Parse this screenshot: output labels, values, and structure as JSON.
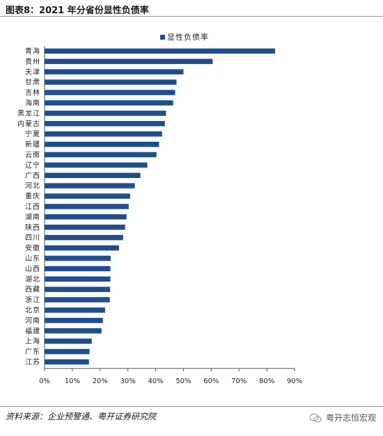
{
  "figure": {
    "title": "图表8：2021 年分省份显性负债率",
    "source": "资料来源：企业预警通、粤开证券研究院",
    "watermark": "粤开志恒宏观"
  },
  "colors": {
    "bar": "#1F4E8C",
    "axis": "#555555",
    "rule": "#9a9a9a"
  },
  "chart_data": {
    "type": "bar",
    "orientation": "horizontal",
    "categories": [
      "青海",
      "贵州",
      "天津",
      "甘肃",
      "吉林",
      "海南",
      "黑龙江",
      "内蒙古",
      "宁夏",
      "新疆",
      "云南",
      "辽宁",
      "广西",
      "河北",
      "重庆",
      "江西",
      "湖南",
      "陕西",
      "四川",
      "安徽",
      "山东",
      "山西",
      "湖北",
      "西藏",
      "浙江",
      "北京",
      "河南",
      "福建",
      "上海",
      "广东",
      "江苏"
    ],
    "series": [
      {
        "name": "显性负债率",
        "values": [
          83.0,
          60.5,
          50.0,
          47.5,
          47.0,
          46.3,
          43.7,
          43.3,
          42.3,
          41.2,
          40.3,
          37.0,
          34.5,
          32.5,
          30.8,
          30.3,
          29.5,
          29.0,
          28.3,
          26.8,
          23.8,
          23.7,
          23.7,
          23.6,
          23.5,
          21.8,
          21.0,
          20.5,
          17.0,
          16.2,
          16.0
        ]
      }
    ],
    "xlim": [
      0,
      90
    ],
    "xticks": [
      0,
      10,
      20,
      30,
      40,
      50,
      60,
      70,
      80,
      90
    ],
    "xtick_labels": [
      "0%",
      "10%",
      "20%",
      "30%",
      "40%",
      "50%",
      "60%",
      "70%",
      "80%",
      "90%"
    ],
    "legend_position": "top-center",
    "grid": false
  }
}
